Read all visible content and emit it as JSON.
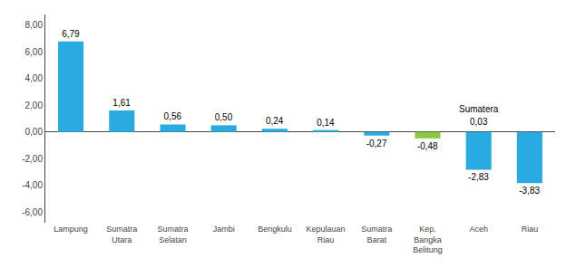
{
  "chart_data": {
    "type": "bar",
    "categories": [
      "Lampung",
      "Sumatra\nUtara",
      "Sumatra\nSelatan",
      "Jambi",
      "Bengkulu",
      "Kepulauan\nRiau",
      "Sumatra\nBarat",
      "Kep.\nBangka\nBelitung",
      "Aceh",
      "Riau"
    ],
    "values": [
      6.79,
      1.61,
      0.56,
      0.5,
      0.24,
      0.14,
      -0.27,
      -0.48,
      -2.83,
      -3.83
    ],
    "value_labels": [
      "6,79",
      "1,61",
      "0,56",
      "0,50",
      "0,24",
      "0,14",
      "-0,27",
      "-0,48",
      "-2,83",
      "-3,83"
    ],
    "colors": [
      "#29ABE2",
      "#29ABE2",
      "#29ABE2",
      "#29ABE2",
      "#29ABE2",
      "#29ABE2",
      "#29ABE2",
      "#8DC63F",
      "#29ABE2",
      "#29ABE2"
    ],
    "data_labels": true,
    "ylim": [
      -6.8,
      8.8
    ],
    "yticks": [
      {
        "value": -6,
        "label": "-6,00"
      },
      {
        "value": -4,
        "label": "-4,00"
      },
      {
        "value": -2,
        "label": "-2,00"
      },
      {
        "value": 0,
        "label": "0,00"
      },
      {
        "value": 2,
        "label": "2,00"
      },
      {
        "value": 4,
        "label": "4,00"
      },
      {
        "value": 6,
        "label": "6,00"
      },
      {
        "value": 8,
        "label": "8,00"
      }
    ],
    "grid": false,
    "annotations": [
      {
        "text": "Sumatera",
        "x": "Aceh"
      },
      {
        "text": "0,03",
        "x": "Aceh"
      }
    ]
  }
}
